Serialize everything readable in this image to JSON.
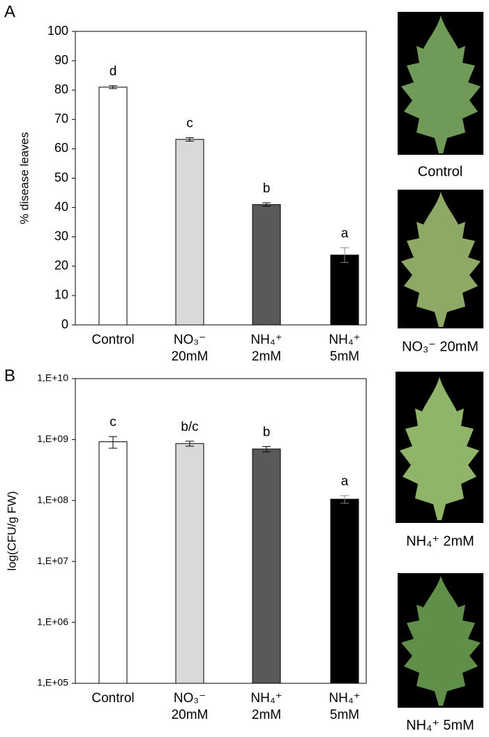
{
  "chart_data": [
    {
      "type": "bar",
      "panel": "A",
      "ylabel": "% disease leaves",
      "categories": [
        "Control",
        "NO₃⁻ 20mM",
        "NH₄⁺ 2mM",
        "NH₄⁺ 5mM"
      ],
      "values": [
        81,
        63.2,
        41,
        23.8
      ],
      "errors": [
        0.5,
        0.6,
        0.6,
        2.5
      ],
      "letters": [
        "d",
        "c",
        "b",
        "a"
      ],
      "colors": [
        "#ffffff",
        "#d9d9d9",
        "#595959",
        "#000000"
      ],
      "ylim": [
        0,
        100
      ],
      "yticks": [
        0,
        10,
        20,
        30,
        40,
        50,
        60,
        70,
        80,
        90,
        100
      ],
      "log_scale": false
    },
    {
      "type": "bar",
      "panel": "B",
      "ylabel": "log(CFU/g FW)",
      "categories": [
        "Control",
        "NO₃⁻ 20mM",
        "NH₄⁺ 2mM",
        "NH₄⁺ 5mM"
      ],
      "values": [
        920000000,
        860000000,
        700000000,
        105000000
      ],
      "errors": [
        200000000,
        80000000,
        70000000,
        15000000
      ],
      "letters": [
        "c",
        "b/c",
        "b",
        "a"
      ],
      "colors": [
        "#ffffff",
        "#d9d9d9",
        "#595959",
        "#000000"
      ],
      "ylim": [
        100000,
        10000000000
      ],
      "yticks": [
        {
          "value": 100000,
          "label": "1,E+05"
        },
        {
          "value": 1000000,
          "label": "1,E+06"
        },
        {
          "value": 10000000,
          "label": "1,E+07"
        },
        {
          "value": 100000000,
          "label": "1,E+08"
        },
        {
          "value": 1000000000,
          "label": "1,E+09"
        },
        {
          "value": 10000000000,
          "label": "1,E+10"
        }
      ],
      "log_scale": true
    }
  ],
  "photos": {
    "captions": [
      "Control",
      "NO₃⁻ 20mM",
      "NH₄⁺ 2mM",
      "NH₄⁺ 5mM"
    ]
  }
}
